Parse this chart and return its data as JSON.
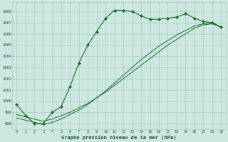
{
  "title": "Graphe pression niveau de la mer (hPa)",
  "background_color": "#cce8e0",
  "grid_color": "#aaccC4",
  "line_color": "#1a6b2a",
  "xlim": [
    -0.5,
    23.5
  ],
  "ylim": [
    997.5,
    1008.8
  ],
  "yticks": [
    998,
    999,
    1000,
    1001,
    1002,
    1003,
    1004,
    1005,
    1006,
    1007,
    1008
  ],
  "xticks": [
    0,
    1,
    2,
    3,
    4,
    5,
    6,
    7,
    8,
    9,
    10,
    11,
    12,
    13,
    14,
    15,
    16,
    17,
    18,
    19,
    20,
    21,
    22,
    23
  ],
  "line1_x": [
    0,
    1,
    2,
    3,
    4,
    5,
    6,
    7,
    8,
    9,
    10,
    11,
    12,
    13,
    14,
    15,
    16,
    17,
    18,
    19,
    20,
    21,
    22,
    23
  ],
  "line1_y": [
    999.7,
    998.7,
    998.0,
    998.0,
    999.0,
    999.5,
    1001.3,
    1003.4,
    1005.0,
    1006.2,
    1007.4,
    1008.1,
    1008.1,
    1008.0,
    1007.6,
    1007.3,
    1007.3,
    1007.4,
    1007.5,
    1007.8,
    1007.4,
    1007.1,
    1007.0,
    1006.6
  ],
  "line2_x": [
    0,
    1,
    2,
    3,
    4,
    5,
    6,
    7,
    8,
    9,
    10,
    11,
    12,
    13,
    14,
    15,
    16,
    17,
    18,
    19,
    20,
    21,
    22,
    23
  ],
  "line2_y": [
    998.8,
    998.6,
    998.4,
    998.2,
    998.4,
    998.7,
    999.0,
    999.4,
    999.8,
    1000.3,
    1000.8,
    1001.4,
    1002.0,
    1002.6,
    1003.2,
    1003.8,
    1004.4,
    1005.0,
    1005.5,
    1006.0,
    1006.5,
    1006.8,
    1006.9,
    1006.6
  ],
  "line3_x": [
    0,
    1,
    2,
    3,
    4,
    5,
    6,
    7,
    8,
    9,
    10,
    11,
    12,
    13,
    14,
    15,
    16,
    17,
    18,
    19,
    20,
    21,
    22,
    23
  ],
  "line3_y": [
    998.5,
    998.3,
    998.1,
    997.9,
    998.1,
    998.4,
    998.8,
    999.2,
    999.7,
    1000.3,
    1000.9,
    1001.6,
    1002.3,
    1003.0,
    1003.7,
    1004.3,
    1004.9,
    1005.4,
    1005.9,
    1006.3,
    1006.7,
    1006.9,
    1007.0,
    1006.6
  ]
}
